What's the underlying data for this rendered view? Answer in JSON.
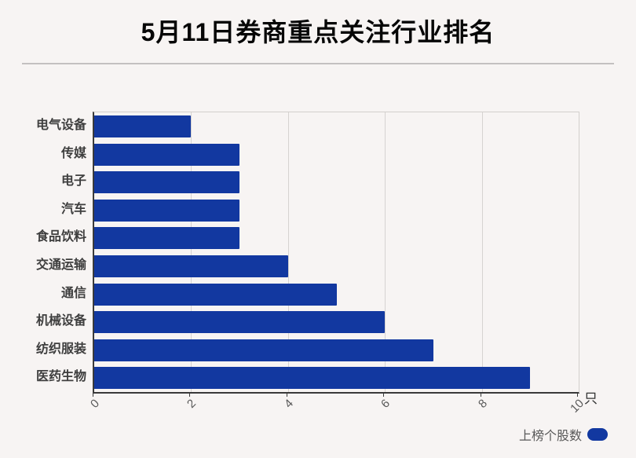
{
  "title": "5月11日券商重点关注行业排名",
  "unit_label": "只",
  "legend": {
    "label": "上榜个股数"
  },
  "colors": {
    "bar": "#1238a0",
    "background": "#f7f4f3",
    "grid": "#d6d3d1",
    "axis": "#3a3a3a",
    "tick_text": "#595959"
  },
  "chart_data": {
    "type": "bar",
    "orientation": "horizontal",
    "title": "5月11日券商重点关注行业排名",
    "categories": [
      "电气设备",
      "传媒",
      "电子",
      "汽车",
      "食品饮料",
      "交通运输",
      "通信",
      "机械设备",
      "纺织服装",
      "医药生物"
    ],
    "values": [
      2,
      3,
      3,
      3,
      3,
      4,
      5,
      6,
      7,
      9
    ],
    "series_name": "上榜个股数",
    "x_ticks": [
      0,
      2,
      4,
      6,
      8,
      10
    ],
    "xlim": [
      0,
      10
    ],
    "xlabel_unit": "只",
    "grid": true,
    "legend_position": "bottom-right",
    "bar_color": "#1238a0"
  }
}
